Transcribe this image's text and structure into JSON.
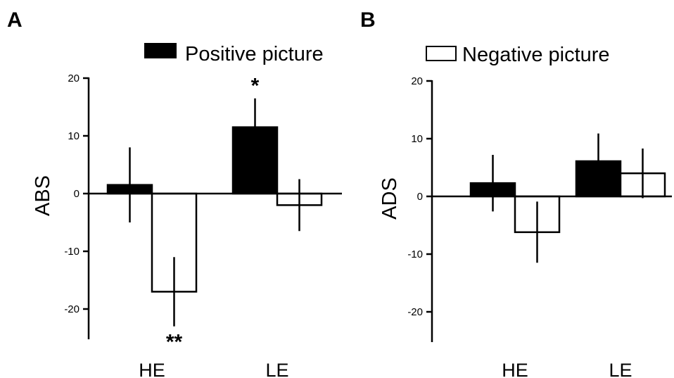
{
  "legend": [
    {
      "label": "Positive picture",
      "fill": "#000000"
    },
    {
      "label": "Negative picture",
      "fill": "#ffffff"
    }
  ],
  "chart_data": [
    {
      "panel": "A",
      "type": "bar",
      "title": "",
      "xlabel": "",
      "ylabel": "ABS",
      "categories": [
        "HE",
        "LE"
      ],
      "series": [
        {
          "name": "Positive picture",
          "values": [
            1.5,
            11.5
          ],
          "error": [
            6.5,
            5.0
          ]
        },
        {
          "name": "Negative picture",
          "values": [
            -17,
            -2
          ],
          "error": [
            6.0,
            4.5
          ]
        }
      ],
      "annotations": [
        {
          "category": "LE",
          "series": 0,
          "text": "*"
        },
        {
          "category": "HE",
          "series": 1,
          "text": "**"
        }
      ],
      "yticks": [
        20,
        10,
        0,
        -10,
        -20
      ],
      "ytick_labels": [
        "20",
        "10",
        "0",
        "-10",
        "-20"
      ],
      "ylim": [
        -25,
        20
      ],
      "grid": false
    },
    {
      "panel": "B",
      "type": "bar",
      "title": "",
      "xlabel": "",
      "ylabel": "ADS",
      "categories": [
        "HE",
        "LE"
      ],
      "series": [
        {
          "name": "Positive picture",
          "values": [
            2.3,
            6.1
          ],
          "error": [
            4.9,
            4.8
          ]
        },
        {
          "name": "Negative picture",
          "values": [
            -6.2,
            4.0
          ],
          "error": [
            5.3,
            4.3
          ]
        }
      ],
      "annotations": [],
      "yticks": [
        20,
        10,
        0,
        -10,
        -20
      ],
      "ytick_labels": [
        "20",
        "10",
        "0",
        "-10",
        "-20"
      ],
      "ylim": [
        -25,
        20
      ],
      "grid": false
    }
  ]
}
